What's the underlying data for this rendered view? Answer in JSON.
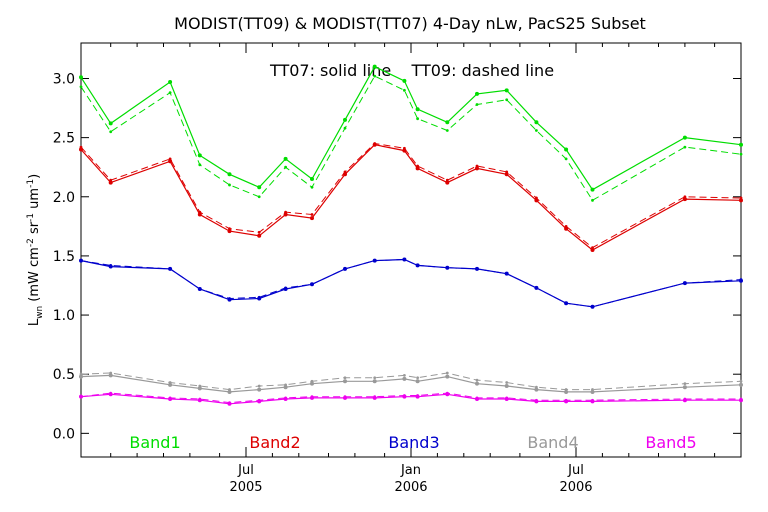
{
  "chart_data": {
    "type": "line",
    "title": "MODIST(TT09) & MODIST(TT07) 4-Day nLw, PacS25 Subset",
    "annotation": "TT07: solid line    TT09: dashed line",
    "ylabel_main": "L",
    "ylabel_sub": "wn",
    "ylabel_rest": " (mW cm",
    "ylabel_sup1": "-2",
    "ylabel_mid": " sr",
    "ylabel_sup2": "-1",
    "ylabel_mid2": " um",
    "ylabel_sup3": "-1",
    "ylabel_end": ")",
    "ylim": [
      -0.2,
      3.3
    ],
    "yticks": [
      0.0,
      0.5,
      1.0,
      1.5,
      2.0,
      2.5,
      3.0
    ],
    "ytick_labels": [
      "0.0",
      "0.5",
      "1.0",
      "1.5",
      "2.0",
      "2.5",
      "3.0"
    ],
    "xlim": [
      0,
      100
    ],
    "xticks": [
      {
        "x": 25,
        "line1": "Jul",
        "line2": "2005"
      },
      {
        "x": 50,
        "line1": "Jan",
        "line2": "2006"
      },
      {
        "x": 75,
        "line1": "Jul",
        "line2": "2006"
      }
    ],
    "minor_xticks": [
      4.5,
      8.5,
      12.5,
      16.5,
      21,
      29,
      33,
      37.5,
      41.5,
      46,
      54,
      58,
      62,
      66.5,
      71,
      79,
      83,
      87.5,
      91.5,
      96
    ],
    "x": [
      0,
      4.5,
      13.5,
      18,
      22.5,
      27,
      31,
      35,
      40,
      44.5,
      49,
      51,
      55.5,
      60,
      64.5,
      69,
      73.5,
      77.5,
      91.5,
      100
    ],
    "series": [
      {
        "name": "Band1",
        "color": "#00dd00",
        "solid": [
          3.01,
          2.62,
          2.97,
          2.35,
          2.19,
          2.08,
          2.32,
          2.15,
          2.65,
          3.1,
          2.98,
          2.74,
          2.63,
          2.87,
          2.9,
          2.63,
          2.4,
          2.06,
          2.5,
          2.44
        ],
        "dashed": [
          2.93,
          2.55,
          2.88,
          2.27,
          2.1,
          2.0,
          2.25,
          2.08,
          2.58,
          3.02,
          2.9,
          2.66,
          2.56,
          2.78,
          2.82,
          2.56,
          2.32,
          1.97,
          2.42,
          2.36
        ]
      },
      {
        "name": "Band2",
        "color": "#dd0000",
        "solid": [
          2.4,
          2.12,
          2.3,
          1.85,
          1.71,
          1.67,
          1.85,
          1.82,
          2.19,
          2.44,
          2.39,
          2.24,
          2.12,
          2.24,
          2.19,
          1.97,
          1.73,
          1.55,
          1.98,
          1.97
        ],
        "dashed": [
          2.42,
          2.14,
          2.32,
          1.87,
          1.73,
          1.7,
          1.87,
          1.85,
          2.21,
          2.45,
          2.41,
          2.26,
          2.14,
          2.26,
          2.21,
          1.99,
          1.75,
          1.57,
          2.0,
          1.99
        ]
      },
      {
        "name": "Band3",
        "color": "#0000cc",
        "solid": [
          1.46,
          1.41,
          1.39,
          1.22,
          1.13,
          1.14,
          1.22,
          1.26,
          1.39,
          1.46,
          1.47,
          1.42,
          1.4,
          1.39,
          1.35,
          1.23,
          1.1,
          1.07,
          1.27,
          1.29
        ],
        "dashed": [
          1.46,
          1.42,
          1.39,
          1.22,
          1.14,
          1.15,
          1.23,
          1.26,
          1.39,
          1.46,
          1.47,
          1.42,
          1.4,
          1.39,
          1.35,
          1.23,
          1.1,
          1.07,
          1.27,
          1.3
        ]
      },
      {
        "name": "Band4",
        "color": "#999999",
        "solid": [
          0.48,
          0.49,
          0.41,
          0.38,
          0.35,
          0.37,
          0.39,
          0.42,
          0.44,
          0.44,
          0.46,
          0.44,
          0.48,
          0.42,
          0.4,
          0.37,
          0.35,
          0.35,
          0.39,
          0.41
        ],
        "dashed": [
          0.5,
          0.51,
          0.43,
          0.4,
          0.37,
          0.4,
          0.41,
          0.44,
          0.47,
          0.47,
          0.49,
          0.47,
          0.51,
          0.45,
          0.43,
          0.39,
          0.37,
          0.37,
          0.42,
          0.44
        ]
      },
      {
        "name": "Band5",
        "color": "#ee00ee",
        "solid": [
          0.31,
          0.33,
          0.29,
          0.28,
          0.25,
          0.27,
          0.29,
          0.3,
          0.3,
          0.3,
          0.31,
          0.31,
          0.33,
          0.29,
          0.29,
          0.27,
          0.27,
          0.27,
          0.28,
          0.28
        ],
        "dashed": [
          0.31,
          0.34,
          0.3,
          0.29,
          0.26,
          0.28,
          0.3,
          0.31,
          0.31,
          0.31,
          0.32,
          0.32,
          0.34,
          0.3,
          0.3,
          0.28,
          0.28,
          0.28,
          0.29,
          0.29
        ]
      }
    ],
    "legend_placement": "bottom-inside",
    "grid": false
  }
}
